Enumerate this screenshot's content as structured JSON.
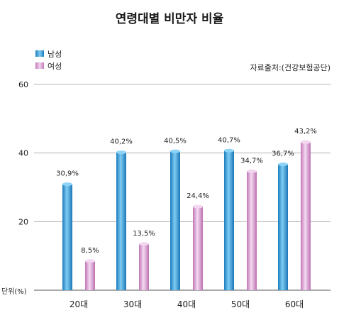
{
  "chart_data": {
    "type": "bar",
    "title": "연령대별 비만자 비율",
    "source": "자료출처:(건강보험공단)",
    "unit_label": "단위(%)",
    "categories": [
      "20대",
      "30대",
      "40대",
      "50대",
      "60대"
    ],
    "series": [
      {
        "name": "남성",
        "values": [
          30.9,
          40.2,
          40.5,
          40.7,
          36.7
        ],
        "labels": [
          "30,9%",
          "40,2%",
          "40,5%",
          "40,7%",
          "36,7%"
        ],
        "color": "#2f9fdc"
      },
      {
        "name": "여성",
        "values": [
          8.5,
          13.5,
          24.4,
          34.7,
          43.2
        ],
        "labels": [
          "8,5%",
          "13,5%",
          "24,4%",
          "34,7%",
          "43,2%"
        ],
        "color": "#d79ad0"
      }
    ],
    "y_ticks": [
      "20",
      "40",
      "60"
    ],
    "ylim": [
      0,
      60
    ],
    "grid": true,
    "legend": "top-left"
  }
}
